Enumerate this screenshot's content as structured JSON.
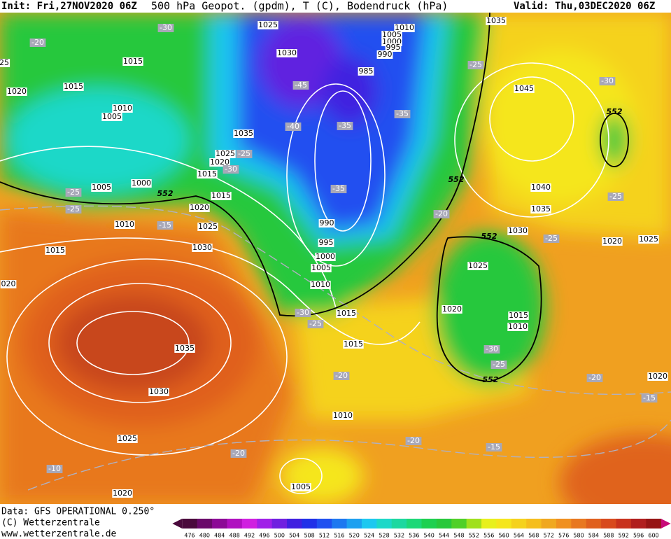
{
  "header": {
    "init": "Init: Fri,27NOV2020 06Z",
    "title": "500 hPa Geopot. (gpdm), T (C), Bodendruck (hPa)",
    "valid": "Valid: Thu,03DEC2020 06Z"
  },
  "footer": {
    "data": "Data: GFS OPERATIONAL 0.250°",
    "copyright": "(C) Wetterzentrale",
    "url": "www.wetterzentrale.de"
  },
  "colorbar": {
    "ticks": [
      476,
      480,
      484,
      488,
      492,
      496,
      500,
      504,
      508,
      512,
      516,
      520,
      524,
      528,
      532,
      536,
      540,
      544,
      548,
      552,
      556,
      560,
      564,
      568,
      572,
      576,
      580,
      584,
      588,
      592,
      596,
      600
    ],
    "colors": [
      "#4a0a3c",
      "#6a0a6a",
      "#8c0a96",
      "#b010c0",
      "#d020e0",
      "#a020e8",
      "#7020e0",
      "#4020e0",
      "#2030e8",
      "#2050f0",
      "#1e78f0",
      "#1ea0f0",
      "#1ec8f0",
      "#1ed8c8",
      "#1ed8a0",
      "#1ed878",
      "#1ed050",
      "#28c83c",
      "#50d028",
      "#a0e01e",
      "#e8f01e",
      "#f5e61e",
      "#f5d21e",
      "#f5be1e",
      "#f0a820",
      "#f09020",
      "#e87820",
      "#e0601e",
      "#d84a1e",
      "#c8321e",
      "#b01e1e",
      "#961414"
    ]
  },
  "isobar_labels": [
    "1025",
    "1030",
    "1010",
    "1005",
    "1000",
    "995",
    "990",
    "985",
    "1035",
    "1015",
    "1015",
    "1020",
    "1010",
    "1005",
    "1035",
    "1025",
    "1020",
    "1015",
    "1005",
    "1000",
    "1015",
    "1020",
    "1010",
    "1025",
    "1015",
    "1030",
    "990",
    "995",
    "1000",
    "1005",
    "1010",
    "1015",
    "1015",
    "1035",
    "1030",
    "1025",
    "1020",
    "1010",
    "1005",
    "1045",
    "1040",
    "1035",
    "1030",
    "1020",
    "1025",
    "1025",
    "1020",
    "1015",
    "1010",
    "1020",
    "020",
    "25"
  ],
  "isotherm_labels": [
    "-30",
    "-20",
    "-25",
    "-45",
    "-40",
    "-35",
    "-35",
    "-30",
    "-25",
    "-30",
    "-25",
    "-25",
    "-15",
    "-35",
    "-20",
    "-25",
    "-25",
    "-30",
    "-25",
    "-30",
    "-25",
    "-20",
    "-20",
    "-15",
    "-20",
    "-15",
    "-20",
    "-10"
  ],
  "height_labels": [
    "552",
    "552",
    "552",
    "552",
    "552"
  ]
}
